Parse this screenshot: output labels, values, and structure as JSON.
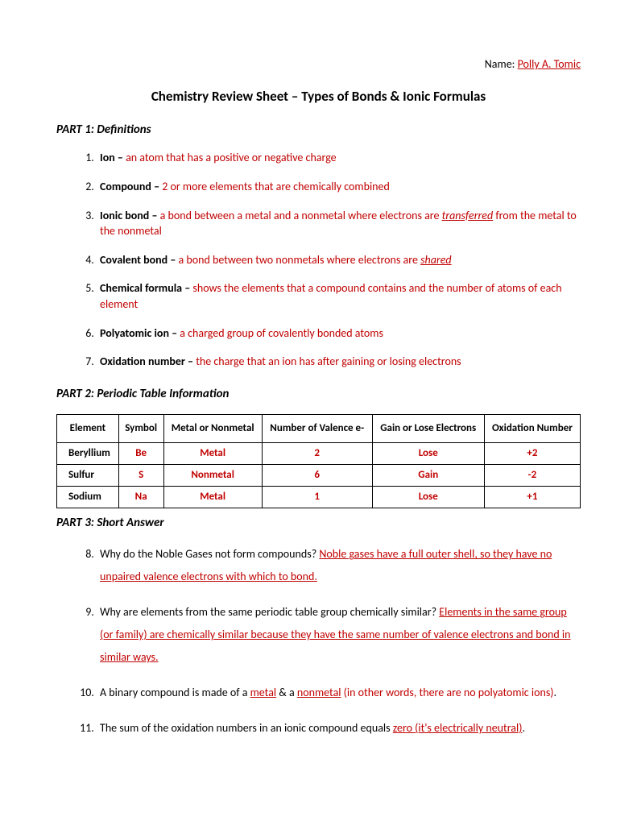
{
  "colors": {
    "answer": "#c00000",
    "text": "#000000",
    "background": "#ffffff",
    "border": "#000000"
  },
  "fonts": {
    "body_size": 14,
    "title_size": 17,
    "heading_size": 15
  },
  "header": {
    "name_label": "Name: ",
    "name_value": "Polly A. Tomic",
    "title": "Chemistry Review Sheet – Types of Bonds & Ionic Formulas"
  },
  "part1": {
    "heading": "PART 1: Definitions",
    "items": [
      {
        "term": "Ion – ",
        "answer": "an atom that has a positive or negative charge"
      },
      {
        "term": "Compound – ",
        "answer": "2 or more elements that are chemically combined"
      },
      {
        "term": "Ionic bond – ",
        "answer_pre": "a bond between a metal and a nonmetal where electrons are ",
        "answer_u": "transferred",
        "answer_post": " from the metal to the nonmetal"
      },
      {
        "term": "Covalent bond – ",
        "answer_pre": "a bond between two nonmetals where electrons are ",
        "answer_u": "shared",
        "answer_post": ""
      },
      {
        "term": "Chemical formula – ",
        "answer": "shows the elements that a compound contains and the number of atoms of each element"
      },
      {
        "term": "Polyatomic ion – ",
        "answer": "a charged group of covalently bonded atoms"
      },
      {
        "term": "Oxidation number – ",
        "answer": "the charge that an ion has after gaining or losing electrons"
      }
    ]
  },
  "part2": {
    "heading": "PART 2: Periodic Table Information",
    "columns": [
      "Element",
      "Symbol",
      "Metal or Nonmetal",
      "Number of Valence e-",
      "Gain or Lose Electrons",
      "Oxidation Number"
    ],
    "rows": [
      {
        "element": "Beryllium",
        "symbol": "Be",
        "type": "Metal",
        "valence": "2",
        "gainlose": "Lose",
        "oxnum": "+2"
      },
      {
        "element": "Sulfur",
        "symbol": "S",
        "type": "Nonmetal",
        "valence": "6",
        "gainlose": "Gain",
        "oxnum": "-2"
      },
      {
        "element": "Sodium",
        "symbol": "Na",
        "type": "Metal",
        "valence": "1",
        "gainlose": "Lose",
        "oxnum": "+1"
      }
    ]
  },
  "part3": {
    "heading": "PART 3: Short Answer",
    "q8": {
      "q": "Why do the Noble Gases not form compounds? ",
      "a": "Noble gases have a full outer shell, so they have no unpaired valence electrons with which to bond."
    },
    "q9": {
      "q": "Why are elements from the same periodic table group chemically similar? ",
      "a": "Elements in the same group (or family) are chemically similar because they have the same number of valence electrons and bond in similar ways."
    },
    "q10": {
      "pre": "A binary compound is made of a ",
      "u1": "metal",
      "mid": " & a ",
      "u2": "nonmetal",
      "post": " (in other words, there are no polyatomic ions)",
      "dot": "."
    },
    "q11": {
      "pre": "The sum of the oxidation numbers in an ionic compound equals ",
      "a": "zero (it's electrically neutral)",
      "dot": "."
    }
  }
}
